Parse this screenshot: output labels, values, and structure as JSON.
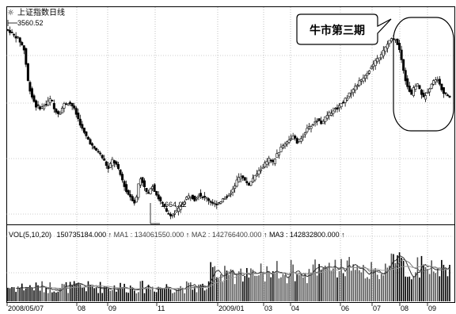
{
  "chart_data": {
    "type": "candlestick",
    "title": "上证指数日线",
    "price_high_label": "3560.52",
    "price_low_label": "1664.92",
    "annotation": "牛市第三期",
    "x_ticks": [
      "2008/05/07",
      "08",
      "09",
      "11",
      "2009/01",
      "03",
      "04",
      "06",
      "07",
      "08",
      "09"
    ],
    "volume_indicator": {
      "header": "VOL(5,10,20)",
      "vol": "150735184.000",
      "ma1_label": "MA1",
      "ma1": "134061550.000",
      "ma2_label": "MA2",
      "ma2": "142766400.000",
      "ma3_label": "MA3",
      "ma3": "142832800.000"
    },
    "price_series": [
      {
        "x": 0,
        "v": 3560
      },
      {
        "x": 4,
        "v": 3540
      },
      {
        "x": 8,
        "v": 3500
      },
      {
        "x": 12,
        "v": 3470
      },
      {
        "x": 15,
        "v": 3420
      },
      {
        "x": 17,
        "v": 3380
      },
      {
        "x": 19,
        "v": 3330
      },
      {
        "x": 21,
        "v": 3080
      },
      {
        "x": 25,
        "v": 2900
      },
      {
        "x": 30,
        "v": 2780
      },
      {
        "x": 35,
        "v": 2760
      },
      {
        "x": 40,
        "v": 2800
      },
      {
        "x": 45,
        "v": 2860
      },
      {
        "x": 48,
        "v": 2750
      },
      {
        "x": 53,
        "v": 2700
      },
      {
        "x": 58,
        "v": 2800
      },
      {
        "x": 63,
        "v": 2820
      },
      {
        "x": 67,
        "v": 2770
      },
      {
        "x": 72,
        "v": 2650
      },
      {
        "x": 77,
        "v": 2520
      },
      {
        "x": 82,
        "v": 2440
      },
      {
        "x": 88,
        "v": 2340
      },
      {
        "x": 93,
        "v": 2310
      },
      {
        "x": 98,
        "v": 2220
      },
      {
        "x": 102,
        "v": 2140
      },
      {
        "x": 106,
        "v": 2230
      },
      {
        "x": 110,
        "v": 2180
      },
      {
        "x": 114,
        "v": 2080
      },
      {
        "x": 117,
        "v": 2000
      },
      {
        "x": 120,
        "v": 1910
      },
      {
        "x": 124,
        "v": 1860
      },
      {
        "x": 128,
        "v": 1800
      },
      {
        "x": 130,
        "v": 1850
      },
      {
        "x": 133,
        "v": 2060
      },
      {
        "x": 136,
        "v": 2010
      },
      {
        "x": 139,
        "v": 1920
      },
      {
        "x": 142,
        "v": 1880
      },
      {
        "x": 145,
        "v": 1990
      },
      {
        "x": 149,
        "v": 1900
      },
      {
        "x": 153,
        "v": 1820
      },
      {
        "x": 157,
        "v": 1770
      },
      {
        "x": 160,
        "v": 1700
      },
      {
        "x": 163,
        "v": 1680
      },
      {
        "x": 166,
        "v": 1670
      },
      {
        "x": 169,
        "v": 1700
      },
      {
        "x": 173,
        "v": 1740
      },
      {
        "x": 177,
        "v": 1800
      },
      {
        "x": 180,
        "v": 1850
      },
      {
        "x": 184,
        "v": 1870
      },
      {
        "x": 188,
        "v": 1830
      },
      {
        "x": 192,
        "v": 1880
      },
      {
        "x": 196,
        "v": 1860
      },
      {
        "x": 200,
        "v": 1840
      },
      {
        "x": 204,
        "v": 1810
      },
      {
        "x": 208,
        "v": 1780
      },
      {
        "x": 212,
        "v": 1800
      },
      {
        "x": 216,
        "v": 1830
      },
      {
        "x": 220,
        "v": 1860
      },
      {
        "x": 224,
        "v": 1900
      },
      {
        "x": 228,
        "v": 1960
      },
      {
        "x": 231,
        "v": 2040
      },
      {
        "x": 234,
        "v": 2070
      },
      {
        "x": 238,
        "v": 2020
      },
      {
        "x": 242,
        "v": 1980
      },
      {
        "x": 246,
        "v": 2040
      },
      {
        "x": 250,
        "v": 2090
      },
      {
        "x": 254,
        "v": 2140
      },
      {
        "x": 258,
        "v": 2190
      },
      {
        "x": 262,
        "v": 2240
      },
      {
        "x": 266,
        "v": 2200
      },
      {
        "x": 270,
        "v": 2290
      },
      {
        "x": 274,
        "v": 2350
      },
      {
        "x": 278,
        "v": 2400
      },
      {
        "x": 282,
        "v": 2440
      },
      {
        "x": 286,
        "v": 2470
      },
      {
        "x": 290,
        "v": 2410
      },
      {
        "x": 294,
        "v": 2450
      },
      {
        "x": 298,
        "v": 2520
      },
      {
        "x": 302,
        "v": 2560
      },
      {
        "x": 306,
        "v": 2600
      },
      {
        "x": 310,
        "v": 2640
      },
      {
        "x": 314,
        "v": 2610
      },
      {
        "x": 318,
        "v": 2660
      },
      {
        "x": 322,
        "v": 2700
      },
      {
        "x": 326,
        "v": 2740
      },
      {
        "x": 330,
        "v": 2760
      },
      {
        "x": 334,
        "v": 2810
      },
      {
        "x": 338,
        "v": 2850
      },
      {
        "x": 342,
        "v": 2900
      },
      {
        "x": 346,
        "v": 2950
      },
      {
        "x": 350,
        "v": 3000
      },
      {
        "x": 354,
        "v": 3050
      },
      {
        "x": 358,
        "v": 3100
      },
      {
        "x": 362,
        "v": 3150
      },
      {
        "x": 366,
        "v": 3200
      },
      {
        "x": 370,
        "v": 3260
      },
      {
        "x": 374,
        "v": 3300
      },
      {
        "x": 378,
        "v": 3380
      },
      {
        "x": 382,
        "v": 3440
      },
      {
        "x": 386,
        "v": 3470
      },
      {
        "x": 389,
        "v": 3450
      },
      {
        "x": 392,
        "v": 3350
      },
      {
        "x": 395,
        "v": 3200
      },
      {
        "x": 398,
        "v": 3050
      },
      {
        "x": 401,
        "v": 2950
      },
      {
        "x": 404,
        "v": 2900
      },
      {
        "x": 407,
        "v": 2980
      },
      {
        "x": 410,
        "v": 3000
      },
      {
        "x": 413,
        "v": 2930
      },
      {
        "x": 416,
        "v": 2860
      },
      {
        "x": 419,
        "v": 2920
      },
      {
        "x": 422,
        "v": 2970
      },
      {
        "x": 425,
        "v": 3020
      },
      {
        "x": 428,
        "v": 3060
      },
      {
        "x": 431,
        "v": 3030
      },
      {
        "x": 434,
        "v": 2960
      },
      {
        "x": 437,
        "v": 2900
      },
      {
        "x": 440,
        "v": 2880
      }
    ]
  }
}
